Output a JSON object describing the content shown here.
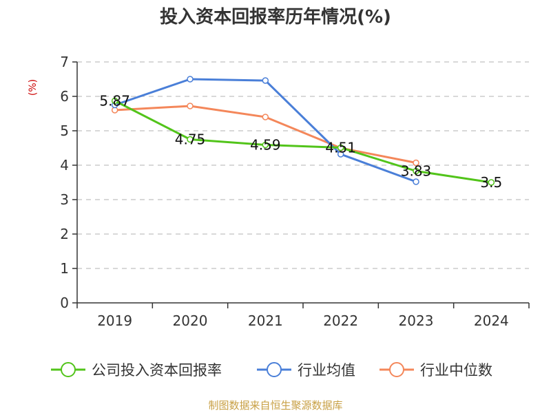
{
  "chart_data": {
    "type": "line",
    "title": "投入资本回报率历年情况(%)",
    "ylabel": "(%)",
    "ylim": [
      0,
      7
    ],
    "yticks": [
      "0",
      "1",
      "2",
      "3",
      "4",
      "5",
      "6",
      "7"
    ],
    "categories": [
      "2019",
      "2020",
      "2021",
      "2022",
      "2023",
      "2024"
    ],
    "grid": true,
    "legend_position": "bottom",
    "series": [
      {
        "name": "公司投入资本回报率",
        "color": "#52c41a",
        "values": [
          5.87,
          4.75,
          4.59,
          4.51,
          3.83,
          3.5
        ],
        "labels": [
          "5.87",
          "4.75",
          "4.59",
          "4.51",
          "3.83",
          "3.5"
        ]
      },
      {
        "name": "行业均值",
        "color": "#4a7fd8",
        "values": [
          5.75,
          6.5,
          6.46,
          4.32,
          3.52,
          null
        ]
      },
      {
        "name": "行业中位数",
        "color": "#f4875a",
        "values": [
          5.6,
          5.72,
          5.4,
          4.5,
          4.07,
          null
        ]
      }
    ],
    "ylabel_color": "#cc0000"
  },
  "source_text": "制图数据来自恒生聚源数据库",
  "source_color": "#c8a045"
}
